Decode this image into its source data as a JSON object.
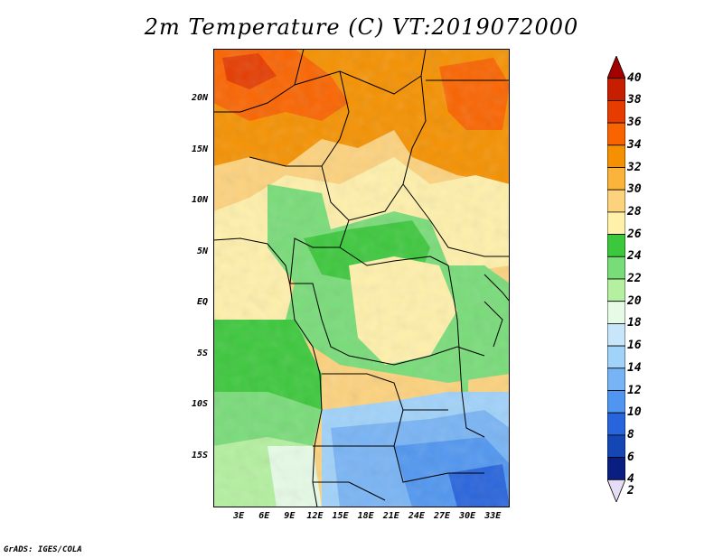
{
  "title": "2m Temperature (C) VT:2019072000",
  "credit": "GrADS: IGES/COLA",
  "map": {
    "lon_range": [
      0,
      35
    ],
    "lat_range": [
      -20,
      25
    ],
    "y_ticks": [
      "20N",
      "15N",
      "10N",
      "5N",
      "EQ",
      "5S",
      "10S",
      "15S"
    ],
    "y_tick_values": [
      20,
      15,
      10,
      5,
      0,
      -5,
      -10,
      -15
    ],
    "x_ticks": [
      "3E",
      "6E",
      "9E",
      "12E",
      "15E",
      "18E",
      "21E",
      "24E",
      "27E",
      "30E",
      "33E"
    ],
    "x_tick_values": [
      3,
      6,
      9,
      12,
      15,
      18,
      21,
      24,
      27,
      30,
      33
    ]
  },
  "colorbar": {
    "labels": [
      "40",
      "38",
      "36",
      "34",
      "32",
      "30",
      "28",
      "26",
      "24",
      "22",
      "20",
      "18",
      "16",
      "14",
      "12",
      "10",
      "8",
      "6",
      "4",
      "2"
    ],
    "colors": [
      "#a50000",
      "#c81e00",
      "#e63c00",
      "#fa6400",
      "#f59100",
      "#fab43c",
      "#fdd27d",
      "#fff0aa",
      "#3cc83c",
      "#78dc78",
      "#b4f0a0",
      "#e6fae6",
      "#c8e6fa",
      "#a0d2fa",
      "#78b4f5",
      "#5096f0",
      "#2864dc",
      "#1446b4",
      "#0a1e82",
      "#e6dcf5"
    ]
  }
}
